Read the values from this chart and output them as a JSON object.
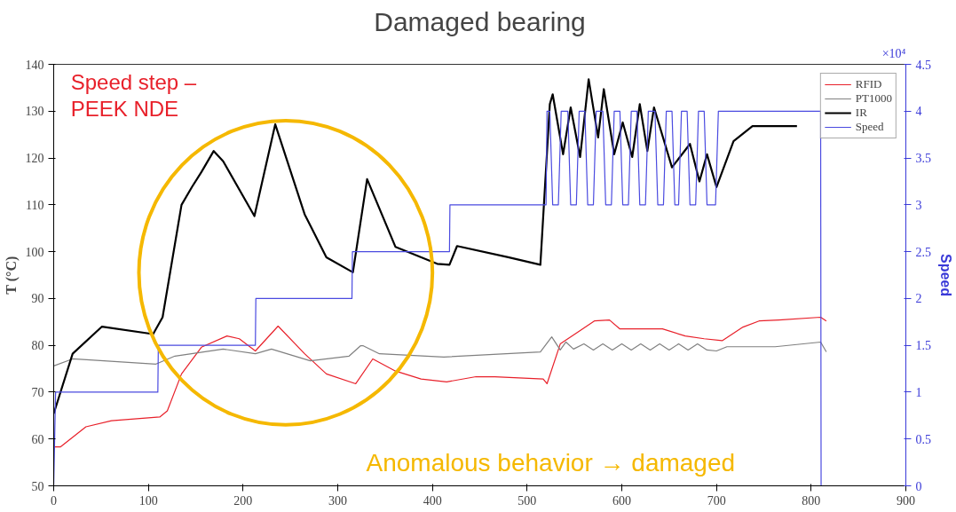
{
  "chart_data": {
    "type": "line",
    "title": "Damaged bearing",
    "ylabel": "T (°C)",
    "y2label": "Speed",
    "xlim": [
      0,
      900
    ],
    "xticks": [
      0,
      100,
      200,
      300,
      400,
      500,
      600,
      700,
      800,
      900
    ],
    "ylim": [
      50,
      140
    ],
    "yticks": [
      50,
      60,
      70,
      80,
      90,
      100,
      110,
      120,
      130,
      140
    ],
    "y2lim": [
      0,
      4.5
    ],
    "y2ticks": [
      0,
      0.5,
      1,
      1.5,
      2,
      2.5,
      3,
      3.5,
      4,
      4.5
    ],
    "legend": "top right",
    "grid": false,
    "annotations": [
      "×10⁴",
      "Speed step –\nPEEK NDE",
      "Anomalous behavior → damaged"
    ],
    "series": [
      {
        "name": "RFID",
        "color": "#e8202a",
        "x": [
          0,
          7,
          34,
          61,
          112,
          120,
          135,
          156,
          183,
          196,
          213,
          237,
          265,
          288,
          319,
          337,
          361,
          388,
          415,
          446,
          466,
          517,
          521,
          535,
          555,
          571,
          587,
          598,
          622,
          643,
          667,
          687,
          706,
          728,
          745,
          766,
          810,
          816
        ],
        "values": [
          58.3,
          58.3,
          62.6,
          63.9,
          64.7,
          66,
          73.9,
          79.6,
          82,
          81.4,
          78.8,
          84.1,
          78.2,
          73.9,
          71.8,
          77.1,
          74.5,
          72.8,
          72.2,
          73.3,
          73.3,
          72.8,
          71.8,
          80.3,
          83,
          85.2,
          85.4,
          83.5,
          83.5,
          83.5,
          82,
          81.4,
          81,
          83.9,
          85.2,
          85.4,
          86,
          85.2
        ]
      },
      {
        "name": "PT1000",
        "color": "#808080",
        "x": [
          0,
          20,
          108,
          128,
          179,
          213,
          230,
          271,
          312,
          324,
          327,
          344,
          412,
          514,
          526,
          535,
          541,
          549,
          560,
          570,
          580,
          590,
          600,
          610,
          620,
          630,
          640,
          650,
          660,
          670,
          680,
          690,
          700,
          711,
          762,
          810,
          816
        ],
        "values": [
          75.6,
          77.1,
          76,
          77.7,
          79.2,
          78.2,
          79.2,
          76.7,
          77.7,
          79.9,
          79.9,
          78.2,
          77.5,
          78.6,
          81.8,
          79,
          80.7,
          79.2,
          80.3,
          79,
          80.3,
          79,
          80.3,
          79,
          80.3,
          79,
          80.3,
          79,
          80.3,
          79,
          80.3,
          79,
          78.8,
          79.7,
          79.7,
          80.7,
          78.6
        ]
      },
      {
        "name": "IR",
        "color": "#000000",
        "x": [
          0,
          20,
          51,
          105,
          115,
          135,
          146,
          156,
          169,
          179,
          212,
          234,
          265,
          288,
          316,
          331,
          361,
          405,
          418,
          426,
          480,
          514,
          524,
          527,
          538,
          546,
          556,
          565,
          575,
          581,
          592,
          601,
          611,
          619,
          627,
          634,
          653,
          672,
          682,
          690,
          700,
          718,
          738,
          785
        ],
        "values": [
          65.4,
          78.2,
          84,
          82.4,
          86,
          110,
          113.8,
          117,
          121.5,
          119.3,
          107.6,
          127.2,
          108,
          98.8,
          95.6,
          115.5,
          101,
          97.4,
          97.2,
          101.2,
          98.8,
          97.2,
          131.5,
          133.6,
          120.8,
          130.8,
          120.2,
          136.8,
          124.4,
          134.7,
          120.8,
          127.6,
          120.2,
          131.5,
          121.5,
          130.8,
          118,
          123,
          115,
          120.8,
          113.8,
          123.6,
          126.8,
          126.8
        ]
      },
      {
        "name": "Speed",
        "color": "#4a4ae0",
        "axis": "y2",
        "x": [
          0,
          2,
          110,
          110.5,
          213,
          213.5,
          315,
          315.5,
          418,
          418.5,
          520,
          521,
          524,
          527,
          533,
          536,
          543,
          546,
          552,
          555,
          561,
          564,
          570,
          573,
          580,
          583,
          589,
          592,
          598,
          601,
          607,
          610,
          616,
          619,
          625,
          628,
          635,
          638,
          644,
          647,
          653,
          656,
          660,
          663,
          669,
          672,
          678,
          681,
          687,
          690,
          699,
          702,
          810,
          810.5
        ],
        "values": [
          0,
          1,
          1,
          1.5,
          1.5,
          2,
          2,
          2.5,
          2.5,
          3,
          3,
          4,
          4,
          3,
          3,
          4,
          4,
          3,
          3,
          4,
          4,
          3,
          3,
          4,
          4,
          3,
          3,
          4,
          4,
          3,
          3,
          4,
          4,
          3,
          3,
          4,
          4,
          3,
          3,
          4,
          4,
          3,
          3,
          4,
          4,
          3,
          3,
          4,
          4,
          3,
          3,
          4,
          4,
          0
        ]
      }
    ]
  }
}
